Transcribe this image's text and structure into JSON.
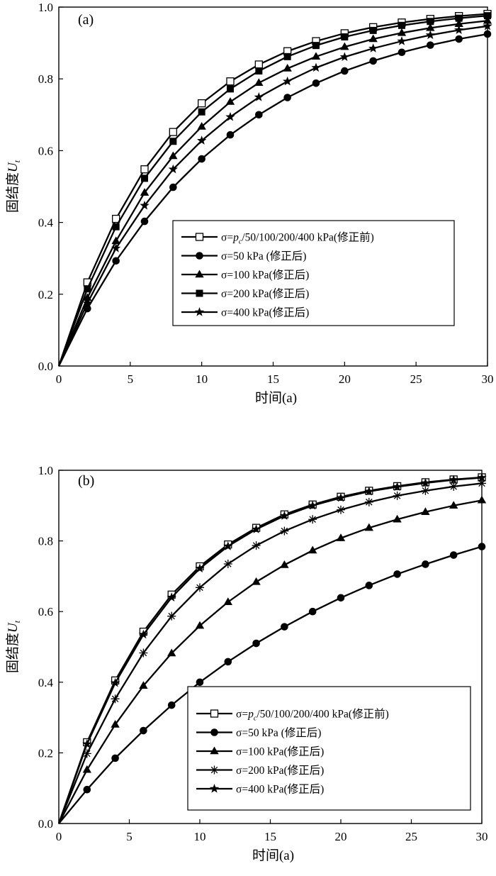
{
  "chart_data": [
    {
      "type": "line",
      "panel_label": "(a)",
      "xlabel": "时间(a)",
      "ylabel": "固结度",
      "ylabel_symbol": "U",
      "ylabel_subscript": "t",
      "xlim": [
        0,
        30
      ],
      "ylim": [
        0,
        1.0
      ],
      "xticks": [
        "0",
        "5",
        "10",
        "15",
        "20",
        "25",
        "30"
      ],
      "yticks": [
        "0.0",
        "0.2",
        "0.4",
        "0.6",
        "0.8",
        "1.0"
      ],
      "legend_position": "center-right",
      "x": [
        0,
        2,
        4,
        6,
        8,
        10,
        12,
        14,
        16,
        18,
        20,
        22,
        24,
        26,
        28,
        30
      ],
      "series": [
        {
          "name": "σ=pc/50/100/200/400 kPa(修正前)",
          "name_prefix": "σ=",
          "name_italic": "p",
          "name_sub": "c",
          "name_rest": "/50/100/200/400 kPa(修正前)",
          "marker": "open-square",
          "values": [
            0,
            0.233,
            0.41,
            0.548,
            0.652,
            0.732,
            0.793,
            0.84,
            0.877,
            0.905,
            0.927,
            0.944,
            0.957,
            0.967,
            0.975,
            0.981
          ]
        },
        {
          "name": "σ=50 kPa (修正后)",
          "marker": "circle",
          "values": [
            0,
            0.16,
            0.293,
            0.403,
            0.498,
            0.577,
            0.644,
            0.7,
            0.748,
            0.788,
            0.822,
            0.85,
            0.874,
            0.894,
            0.911,
            0.925
          ]
        },
        {
          "name": "σ=100 kPa(修正后)",
          "marker": "triangle",
          "values": [
            0,
            0.19,
            0.348,
            0.483,
            0.585,
            0.667,
            0.736,
            0.789,
            0.829,
            0.862,
            0.889,
            0.911,
            0.928,
            0.942,
            0.953,
            0.962
          ]
        },
        {
          "name": "σ=200 kPa(修正后)",
          "marker": "square",
          "values": [
            0,
            0.215,
            0.388,
            0.523,
            0.626,
            0.708,
            0.772,
            0.822,
            0.862,
            0.893,
            0.917,
            0.935,
            0.949,
            0.96,
            0.969,
            0.976
          ]
        },
        {
          "name": "σ=400 kPa(修正后)",
          "marker": "star",
          "values": [
            0,
            0.175,
            0.328,
            0.447,
            0.548,
            0.628,
            0.694,
            0.749,
            0.793,
            0.831,
            0.861,
            0.885,
            0.905,
            0.922,
            0.936,
            0.947
          ]
        }
      ]
    },
    {
      "type": "line",
      "panel_label": "(b)",
      "xlabel": "时间(a)",
      "ylabel": "固结度",
      "ylabel_symbol": "U",
      "ylabel_subscript": "t",
      "xlim": [
        0,
        30
      ],
      "ylim": [
        0,
        1.0
      ],
      "xticks": [
        "0",
        "5",
        "10",
        "15",
        "20",
        "25",
        "30"
      ],
      "yticks": [
        "0.0",
        "0.2",
        "0.4",
        "0.6",
        "0.8",
        "1.0"
      ],
      "legend_position": "bottom-right",
      "x": [
        0,
        2,
        4,
        6,
        8,
        10,
        12,
        14,
        16,
        18,
        20,
        22,
        24,
        26,
        28,
        30
      ],
      "series": [
        {
          "name": "σ=pc/50/100/200/400 kPa(修正前)",
          "name_prefix": "σ=",
          "name_italic": "p",
          "name_sub": "c",
          "name_rest": "/50/100/200/400 kPa(修正前)",
          "marker": "open-square",
          "values": [
            0,
            0.23,
            0.405,
            0.543,
            0.648,
            0.728,
            0.79,
            0.837,
            0.875,
            0.903,
            0.925,
            0.942,
            0.955,
            0.966,
            0.974,
            0.98
          ]
        },
        {
          "name": "σ=50 kPa (修正后)",
          "marker": "circle",
          "values": [
            0,
            0.096,
            0.185,
            0.263,
            0.335,
            0.4,
            0.458,
            0.51,
            0.557,
            0.6,
            0.639,
            0.674,
            0.706,
            0.734,
            0.76,
            0.784
          ]
        },
        {
          "name": "σ=100 kPa(修正后)",
          "marker": "triangle",
          "values": [
            0,
            0.152,
            0.28,
            0.39,
            0.482,
            0.56,
            0.627,
            0.684,
            0.732,
            0.773,
            0.808,
            0.837,
            0.861,
            0.882,
            0.9,
            0.915
          ]
        },
        {
          "name": "σ=200 kPa(修正后)",
          "marker": "asterisk",
          "values": [
            0,
            0.198,
            0.353,
            0.483,
            0.587,
            0.668,
            0.735,
            0.787,
            0.828,
            0.861,
            0.888,
            0.91,
            0.928,
            0.942,
            0.954,
            0.963
          ]
        },
        {
          "name": "σ=400 kPa(修正后)",
          "marker": "star",
          "values": [
            0,
            0.225,
            0.398,
            0.535,
            0.64,
            0.722,
            0.785,
            0.833,
            0.871,
            0.9,
            0.922,
            0.94,
            0.953,
            0.964,
            0.973,
            0.979
          ]
        }
      ]
    }
  ]
}
